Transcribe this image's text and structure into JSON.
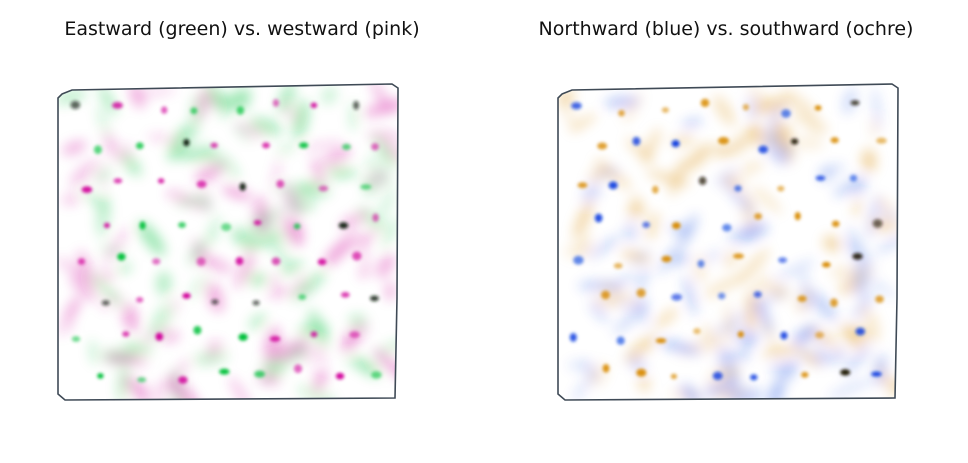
{
  "figure": {
    "panels": [
      {
        "title": "Eastward (green) vs. westward (pink)",
        "color_a": "#00c03a",
        "color_b": "#d0009a",
        "dark": "#101c12",
        "outline": "#3f4a56"
      },
      {
        "title": "Northward (blue) vs. southward (ochre)",
        "color_a": "#0a3fe0",
        "color_b": "#d88a00",
        "dark": "#1a1206",
        "outline": "#3f4a56"
      }
    ]
  }
}
